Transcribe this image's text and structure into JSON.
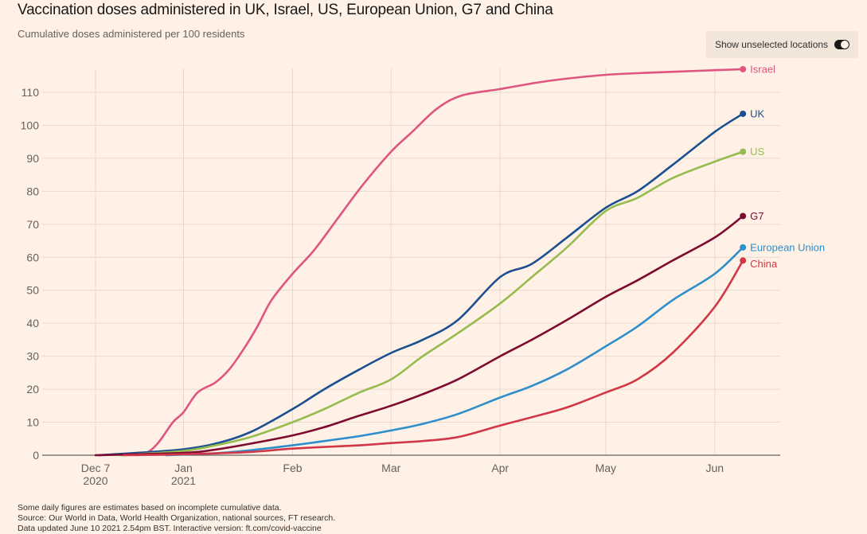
{
  "header": {
    "title": "Vaccination doses administered in UK, Israel, US, European Union, G7 and China",
    "subtitle": "Cumulative doses administered per 100 residents"
  },
  "toggle": {
    "label": "Show unselected locations",
    "state": "on"
  },
  "footnotes": [
    "Some daily figures are estimates based on incomplete cumulative data.",
    "Source: Our World in Data, World Health Organization, national sources, FT research.",
    "Data updated June 10 2021 2.54pm BST. Interactive version: ft.com/covid-vaccine"
  ],
  "chart_data": {
    "type": "line",
    "title": "Vaccination doses administered in UK, Israel, US, European Union, G7 and China",
    "subtitle": "Cumulative doses administered per 100 residents",
    "xlabel": "",
    "ylabel": "Cumulative doses per 100 residents",
    "xlim": [
      "2020-12-07",
      "2021-06-09"
    ],
    "ylim": [
      0,
      117
    ],
    "grid": true,
    "legend": "direct labels at line ends (right)",
    "x_ticks": [
      {
        "date": "2020-12-07",
        "label": "Dec 7",
        "sublabel": "2020"
      },
      {
        "date": "2021-01-01",
        "label": "Jan",
        "sublabel": "2021"
      },
      {
        "date": "2021-02-01",
        "label": "Feb",
        "sublabel": ""
      },
      {
        "date": "2021-03-01",
        "label": "Mar",
        "sublabel": ""
      },
      {
        "date": "2021-04-01",
        "label": "Apr",
        "sublabel": ""
      },
      {
        "date": "2021-05-01",
        "label": "May",
        "sublabel": ""
      },
      {
        "date": "2021-06-01",
        "label": "Jun",
        "sublabel": ""
      }
    ],
    "y_ticks": [
      0,
      10,
      20,
      30,
      40,
      50,
      60,
      70,
      80,
      90,
      100,
      110
    ],
    "series": [
      {
        "name": "Israel",
        "color": "#e0557f",
        "points": [
          [
            "2020-12-19",
            0
          ],
          [
            "2020-12-22",
            1
          ],
          [
            "2020-12-25",
            4
          ],
          [
            "2020-12-29",
            10
          ],
          [
            "2021-01-01",
            13
          ],
          [
            "2021-01-05",
            19
          ],
          [
            "2021-01-10",
            22
          ],
          [
            "2021-01-14",
            26
          ],
          [
            "2021-01-18",
            32
          ],
          [
            "2021-01-22",
            39
          ],
          [
            "2021-01-26",
            47
          ],
          [
            "2021-02-01",
            55
          ],
          [
            "2021-02-07",
            62
          ],
          [
            "2021-02-14",
            72
          ],
          [
            "2021-02-21",
            82
          ],
          [
            "2021-03-01",
            92
          ],
          [
            "2021-03-07",
            98
          ],
          [
            "2021-03-14",
            105
          ],
          [
            "2021-03-21",
            109
          ],
          [
            "2021-04-01",
            111
          ],
          [
            "2021-04-15",
            113.5
          ],
          [
            "2021-05-01",
            115.3
          ],
          [
            "2021-05-15",
            116
          ],
          [
            "2021-06-01",
            116.7
          ],
          [
            "2021-06-09",
            117
          ]
        ]
      },
      {
        "name": "UK",
        "color": "#1b4f92",
        "points": [
          [
            "2020-12-08",
            0
          ],
          [
            "2020-12-20",
            0.8
          ],
          [
            "2021-01-01",
            1.8
          ],
          [
            "2021-01-10",
            3.5
          ],
          [
            "2021-01-20",
            7
          ],
          [
            "2021-02-01",
            14
          ],
          [
            "2021-02-10",
            20
          ],
          [
            "2021-02-20",
            26
          ],
          [
            "2021-03-01",
            31
          ],
          [
            "2021-03-10",
            35
          ],
          [
            "2021-03-20",
            41
          ],
          [
            "2021-04-01",
            54
          ],
          [
            "2021-04-10",
            58
          ],
          [
            "2021-04-20",
            66
          ],
          [
            "2021-05-01",
            75
          ],
          [
            "2021-05-10",
            80
          ],
          [
            "2021-05-20",
            88
          ],
          [
            "2021-06-01",
            98
          ],
          [
            "2021-06-09",
            103.5
          ]
        ]
      },
      {
        "name": "US",
        "color": "#96bc50",
        "points": [
          [
            "2020-12-14",
            0
          ],
          [
            "2021-01-01",
            1.3
          ],
          [
            "2021-01-10",
            3
          ],
          [
            "2021-01-20",
            5.5
          ],
          [
            "2021-02-01",
            10
          ],
          [
            "2021-02-10",
            14
          ],
          [
            "2021-02-20",
            19
          ],
          [
            "2021-03-01",
            23
          ],
          [
            "2021-03-10",
            30
          ],
          [
            "2021-03-20",
            37
          ],
          [
            "2021-04-01",
            46
          ],
          [
            "2021-04-10",
            54
          ],
          [
            "2021-04-20",
            63
          ],
          [
            "2021-05-01",
            74
          ],
          [
            "2021-05-10",
            78
          ],
          [
            "2021-05-20",
            84
          ],
          [
            "2021-06-01",
            89
          ],
          [
            "2021-06-09",
            92
          ]
        ]
      },
      {
        "name": "G7",
        "color": "#7d0a30",
        "points": [
          [
            "2020-12-07",
            0
          ],
          [
            "2021-01-01",
            0.7
          ],
          [
            "2021-01-10",
            1.7
          ],
          [
            "2021-01-20",
            3.5
          ],
          [
            "2021-02-01",
            6
          ],
          [
            "2021-02-10",
            8.5
          ],
          [
            "2021-02-20",
            12
          ],
          [
            "2021-03-01",
            15
          ],
          [
            "2021-03-10",
            18.5
          ],
          [
            "2021-03-20",
            23
          ],
          [
            "2021-04-01",
            30
          ],
          [
            "2021-04-10",
            35
          ],
          [
            "2021-04-20",
            41
          ],
          [
            "2021-05-01",
            48
          ],
          [
            "2021-05-10",
            53
          ],
          [
            "2021-05-20",
            59
          ],
          [
            "2021-06-01",
            66
          ],
          [
            "2021-06-09",
            72.5
          ]
        ]
      },
      {
        "name": "European Union",
        "color": "#2e8fcc",
        "points": [
          [
            "2020-12-27",
            0
          ],
          [
            "2021-01-10",
            0.6
          ],
          [
            "2021-01-20",
            1.5
          ],
          [
            "2021-02-01",
            3
          ],
          [
            "2021-02-10",
            4.3
          ],
          [
            "2021-02-20",
            5.8
          ],
          [
            "2021-03-01",
            7.5
          ],
          [
            "2021-03-10",
            9.5
          ],
          [
            "2021-03-20",
            12.5
          ],
          [
            "2021-04-01",
            17.5
          ],
          [
            "2021-04-10",
            21
          ],
          [
            "2021-04-20",
            26
          ],
          [
            "2021-05-01",
            33
          ],
          [
            "2021-05-10",
            39
          ],
          [
            "2021-05-20",
            47
          ],
          [
            "2021-06-01",
            55
          ],
          [
            "2021-06-09",
            63
          ]
        ]
      },
      {
        "name": "China",
        "color": "#d13747",
        "points": [
          [
            "2020-12-15",
            0
          ],
          [
            "2021-01-01",
            0.3
          ],
          [
            "2021-01-20",
            1
          ],
          [
            "2021-02-01",
            2
          ],
          [
            "2021-02-20",
            3
          ],
          [
            "2021-03-01",
            3.7
          ],
          [
            "2021-03-10",
            4.3
          ],
          [
            "2021-03-20",
            5.5
          ],
          [
            "2021-04-01",
            9
          ],
          [
            "2021-04-10",
            11.5
          ],
          [
            "2021-04-20",
            14.5
          ],
          [
            "2021-05-01",
            19
          ],
          [
            "2021-05-10",
            23
          ],
          [
            "2021-05-20",
            31
          ],
          [
            "2021-06-01",
            45
          ],
          [
            "2021-06-09",
            59
          ]
        ]
      }
    ]
  }
}
